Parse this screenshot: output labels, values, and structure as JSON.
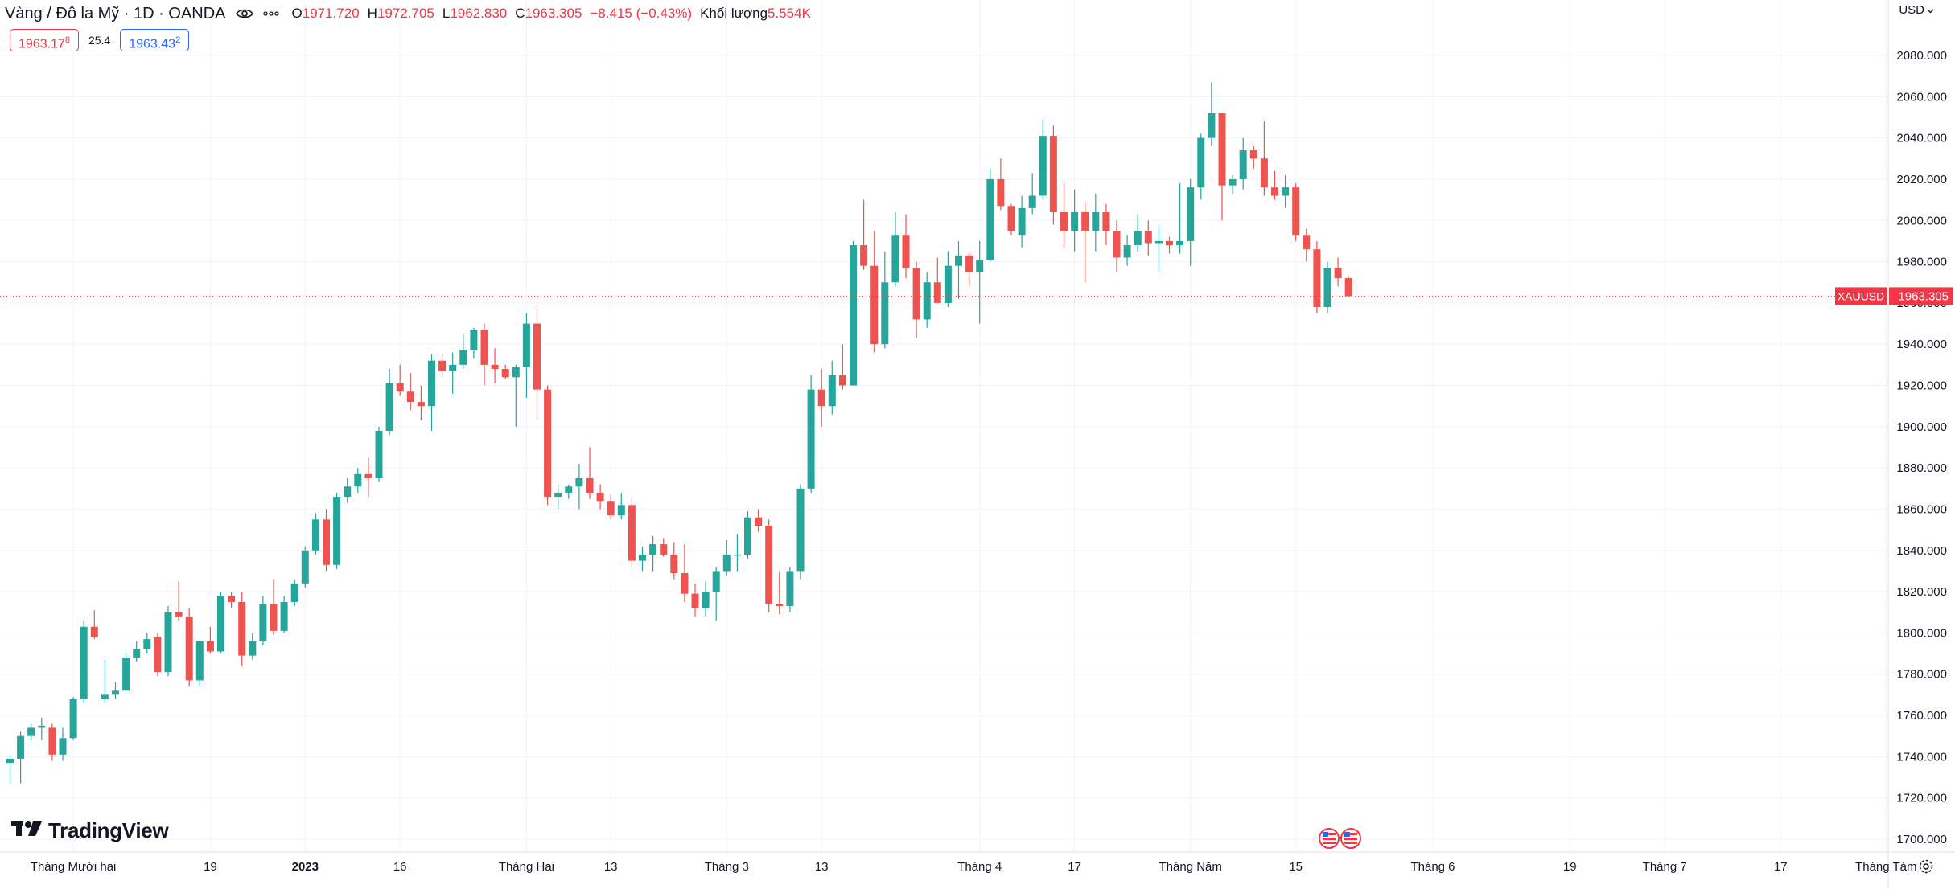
{
  "header": {
    "symbol_title": "Vàng / Đô la Mỹ · 1D · OANDA",
    "open_label": "O",
    "open_value": "1971.720",
    "high_label": "H",
    "high_value": "1972.705",
    "low_label": "L",
    "low_value": "1962.830",
    "close_label": "C",
    "close_value": "1963.305",
    "change_value": "−8.415 (−0.43%)",
    "volume_label": "Khối lượng",
    "volume_value": "5.554K",
    "sell_price": "1963.17",
    "sell_price_sup": "8",
    "spread": "25.4",
    "buy_price": "1963.43",
    "buy_price_sup": "2"
  },
  "currency": "USD",
  "logo_text": "TradingView",
  "last_price_tag": {
    "symbol": "XAUUSD",
    "price": "1963.305"
  },
  "colors": {
    "up": "#26a69a",
    "down": "#ef5350",
    "grid": "#f0f3fa",
    "axis_text": "#131722",
    "last_price": "#f23645"
  },
  "chart_data": {
    "type": "candlestick",
    "symbol": "XAUUSD",
    "interval": "1D",
    "ylim": [
      1690,
      2090
    ],
    "y_ticks": [
      "1700.000",
      "1720.000",
      "1740.000",
      "1760.000",
      "1780.000",
      "1800.000",
      "1820.000",
      "1840.000",
      "1860.000",
      "1880.000",
      "1900.000",
      "1920.000",
      "1940.000",
      "1960.000",
      "1980.000",
      "2000.000",
      "2020.000",
      "2040.000",
      "2060.000",
      "2080.000"
    ],
    "x_ticks": [
      {
        "index": 6,
        "label": "Tháng Mười hai",
        "bold": false
      },
      {
        "index": 19,
        "label": "19",
        "bold": false
      },
      {
        "index": 28,
        "label": "2023",
        "bold": true
      },
      {
        "index": 37,
        "label": "16",
        "bold": false
      },
      {
        "index": 49,
        "label": "Tháng Hai",
        "bold": false
      },
      {
        "index": 57,
        "label": "13",
        "bold": false
      },
      {
        "index": 68,
        "label": "Tháng 3",
        "bold": false
      },
      {
        "index": 77,
        "label": "13",
        "bold": false
      },
      {
        "index": 92,
        "label": "Tháng 4",
        "bold": false
      },
      {
        "index": 101,
        "label": "17",
        "bold": false
      },
      {
        "index": 112,
        "label": "Tháng Năm",
        "bold": false
      },
      {
        "index": 122,
        "label": "15",
        "bold": false
      },
      {
        "index": 135,
        "label": "Tháng 6",
        "bold": false
      },
      {
        "index": 148,
        "label": "19",
        "bold": false
      },
      {
        "index": 157,
        "label": "Tháng 7",
        "bold": false
      },
      {
        "index": 168,
        "label": "17",
        "bold": false
      },
      {
        "index": 178,
        "label": "Tháng Tám",
        "bold": false
      }
    ],
    "candles": [
      [
        1737.0,
        1740.0,
        1727.0,
        1739.0
      ],
      [
        1739.0,
        1752.0,
        1727.0,
        1750.0
      ],
      [
        1750.0,
        1756.0,
        1748.0,
        1754.0
      ],
      [
        1754.0,
        1759.0,
        1748.0,
        1755.0
      ],
      [
        1754.0,
        1756.0,
        1738.0,
        1741.0
      ],
      [
        1741.0,
        1754.0,
        1738.0,
        1749.0
      ],
      [
        1749.0,
        1769.0,
        1748.0,
        1768.0
      ],
      [
        1768.0,
        1806.0,
        1766.0,
        1803.0
      ],
      [
        1803.0,
        1811.0,
        1797.0,
        1798.0
      ],
      [
        1768.0,
        1787.0,
        1766.0,
        1770.0
      ],
      [
        1770.0,
        1776.0,
        1768.0,
        1772.0
      ],
      [
        1772.0,
        1790.0,
        1772.0,
        1788.0
      ],
      [
        1788.0,
        1796.0,
        1786.0,
        1792.0
      ],
      [
        1792.0,
        1800.0,
        1790.0,
        1797.0
      ],
      [
        1798.0,
        1800.0,
        1779.0,
        1781.0
      ],
      [
        1781.0,
        1813.0,
        1779.0,
        1810.0
      ],
      [
        1810.0,
        1825.0,
        1806.0,
        1808.0
      ],
      [
        1808.0,
        1812.0,
        1774.0,
        1777.0
      ],
      [
        1777.0,
        1792.0,
        1774.0,
        1796.0
      ],
      [
        1796.0,
        1803.0,
        1790.0,
        1791.0
      ],
      [
        1791.0,
        1820.0,
        1790.0,
        1818.0
      ],
      [
        1818.0,
        1820.0,
        1812.0,
        1815.0
      ],
      [
        1815.0,
        1820.0,
        1784.0,
        1789.0
      ],
      [
        1789.0,
        1800.0,
        1787.0,
        1796.0
      ],
      [
        1796.0,
        1818.0,
        1794.0,
        1814.0
      ],
      [
        1814.0,
        1826.0,
        1799.0,
        1801.0
      ],
      [
        1801.0,
        1818.0,
        1800.0,
        1815.0
      ],
      [
        1815.0,
        1826.0,
        1813.0,
        1824.0
      ],
      [
        1824.0,
        1842.0,
        1822.0,
        1840.0
      ],
      [
        1840.0,
        1858.0,
        1838.0,
        1855.0
      ],
      [
        1855.0,
        1860.0,
        1830.0,
        1833.0
      ],
      [
        1833.0,
        1868.0,
        1831.0,
        1866.0
      ],
      [
        1866.0,
        1875.0,
        1863.0,
        1871.0
      ],
      [
        1871.0,
        1880.0,
        1868.0,
        1877.0
      ],
      [
        1877.0,
        1885.0,
        1866.0,
        1875.0
      ],
      [
        1875.0,
        1900.0,
        1873.0,
        1898.0
      ],
      [
        1898.0,
        1928.0,
        1896.0,
        1921.0
      ],
      [
        1921.0,
        1930.0,
        1915.0,
        1917.0
      ],
      [
        1917.0,
        1926.0,
        1908.0,
        1912.0
      ],
      [
        1912.0,
        1920.0,
        1903.0,
        1910.0
      ],
      [
        1910.0,
        1935.0,
        1898.0,
        1932.0
      ],
      [
        1932.0,
        1935.0,
        1924.0,
        1927.0
      ],
      [
        1927.0,
        1936.0,
        1916.0,
        1930.0
      ],
      [
        1930.0,
        1945.0,
        1928.0,
        1937.0
      ],
      [
        1937.0,
        1948.0,
        1933.0,
        1947.0
      ],
      [
        1947.0,
        1950.0,
        1920.0,
        1930.0
      ],
      [
        1930.0,
        1938.0,
        1921.0,
        1928.0
      ],
      [
        1928.0,
        1930.0,
        1923.0,
        1924.0
      ],
      [
        1924.0,
        1930.0,
        1900.0,
        1929.0
      ],
      [
        1929.0,
        1955.0,
        1914.0,
        1950.0
      ],
      [
        1950.0,
        1959.0,
        1904.0,
        1918.0
      ],
      [
        1918.0,
        1920.0,
        1862.0,
        1866.0
      ],
      [
        1866.0,
        1872.0,
        1860.0,
        1868.0
      ],
      [
        1868.0,
        1872.0,
        1865.0,
        1871.0
      ],
      [
        1871.0,
        1882.0,
        1860.0,
        1875.0
      ],
      [
        1875.0,
        1890.0,
        1865.0,
        1868.0
      ],
      [
        1868.0,
        1872.0,
        1860.0,
        1864.0
      ],
      [
        1864.0,
        1867.0,
        1855.0,
        1857.0
      ],
      [
        1857.0,
        1868.0,
        1855.0,
        1862.0
      ],
      [
        1862.0,
        1865.0,
        1832.0,
        1835.0
      ],
      [
        1835.0,
        1842.0,
        1830.0,
        1838.0
      ],
      [
        1838.0,
        1847.0,
        1830.0,
        1843.0
      ],
      [
        1843.0,
        1846.0,
        1837.0,
        1838.0
      ],
      [
        1838.0,
        1844.0,
        1826.0,
        1829.0
      ],
      [
        1829.0,
        1843.0,
        1815.0,
        1819.0
      ],
      [
        1819.0,
        1824.0,
        1808.0,
        1812.0
      ],
      [
        1812.0,
        1825.0,
        1808.0,
        1820.0
      ],
      [
        1820.0,
        1832.0,
        1806.0,
        1830.0
      ],
      [
        1830.0,
        1845.0,
        1828.0,
        1838.0
      ],
      [
        1838.0,
        1848.0,
        1830.0,
        1838.0
      ],
      [
        1838.0,
        1859.0,
        1836.0,
        1856.0
      ],
      [
        1856.0,
        1860.0,
        1849.0,
        1852.0
      ],
      [
        1852.0,
        1855.0,
        1810.0,
        1814.0
      ],
      [
        1814.0,
        1830.0,
        1809.0,
        1813.0
      ],
      [
        1813.0,
        1832.0,
        1810.0,
        1830.0
      ],
      [
        1830.0,
        1872.0,
        1826.0,
        1870.0
      ],
      [
        1870.0,
        1925.0,
        1868.0,
        1918.0
      ],
      [
        1918.0,
        1928.0,
        1900.0,
        1910.0
      ],
      [
        1910.0,
        1932.0,
        1906.0,
        1925.0
      ],
      [
        1925.0,
        1940.0,
        1918.0,
        1920.0
      ],
      [
        1920.0,
        1990.0,
        1920.0,
        1988.0
      ],
      [
        1988.0,
        2010.0,
        1976.0,
        1978.0
      ],
      [
        1978.0,
        1995.0,
        1936.0,
        1940.0
      ],
      [
        1940.0,
        1985.0,
        1938.0,
        1970.0
      ],
      [
        1970.0,
        2004.0,
        1968.0,
        1993.0
      ],
      [
        1993.0,
        2003.0,
        1972.0,
        1977.0
      ],
      [
        1977.0,
        1980.0,
        1943.0,
        1952.0
      ],
      [
        1952.0,
        1975.0,
        1948.0,
        1970.0
      ],
      [
        1970.0,
        1982.0,
        1960.0,
        1960.0
      ],
      [
        1960.0,
        1985.0,
        1958.0,
        1978.0
      ],
      [
        1978.0,
        1990.0,
        1962.0,
        1983.0
      ],
      [
        1983.0,
        1985.0,
        1968.0,
        1975.0
      ],
      [
        1975.0,
        1990.0,
        1950.0,
        1981.0
      ],
      [
        1981.0,
        2025.0,
        1980.0,
        2020.0
      ],
      [
        2020.0,
        2030.0,
        2005.0,
        2007.0
      ],
      [
        2007.0,
        2008.0,
        1993.0,
        1995.0
      ],
      [
        1993.0,
        2012.0,
        1987.0,
        2006.0
      ],
      [
        2006.0,
        2023.0,
        2003.0,
        2012.0
      ],
      [
        2012.0,
        2049.0,
        2010.0,
        2041.0
      ],
      [
        2041.0,
        2046.0,
        1998.0,
        2004.0
      ],
      [
        2004.0,
        2018.0,
        1987.0,
        1995.0
      ],
      [
        1995.0,
        2015.0,
        1985.0,
        2004.0
      ],
      [
        2004.0,
        2009.0,
        1970.0,
        1995.0
      ],
      [
        1995.0,
        2013.0,
        1985.0,
        2004.0
      ],
      [
        2004.0,
        2008.0,
        1988.0,
        1995.0
      ],
      [
        1995.0,
        2000.0,
        1975.0,
        1982.0
      ],
      [
        1982.0,
        1993.0,
        1978.0,
        1988.0
      ],
      [
        1988.0,
        2003.0,
        1985.0,
        1995.0
      ],
      [
        1995.0,
        2000.0,
        1983.0,
        1989.0
      ],
      [
        1989.0,
        1998.0,
        1975.0,
        1990.0
      ],
      [
        1990.0,
        1992.0,
        1984.0,
        1988.0
      ],
      [
        1988.0,
        2018.0,
        1984.0,
        1990.0
      ],
      [
        1990.0,
        2020.0,
        1978.0,
        2016.0
      ],
      [
        2016.0,
        2042.0,
        2010.0,
        2040.0
      ],
      [
        2040.0,
        2067.0,
        2036.0,
        2052.0
      ],
      [
        2052.0,
        2050.0,
        2000.0,
        2017.0
      ],
      [
        2017.0,
        2022.0,
        2013.0,
        2020.0
      ],
      [
        2020.0,
        2040.0,
        2015.0,
        2034.0
      ],
      [
        2034.0,
        2036.0,
        2025.0,
        2030.0
      ],
      [
        2030.0,
        2048.0,
        2012.0,
        2016.0
      ],
      [
        2016.0,
        2024.0,
        2010.0,
        2012.0
      ],
      [
        2012.0,
        2022.0,
        2006.0,
        2016.0
      ],
      [
        2016.0,
        2018.0,
        1990.0,
        1993.0
      ],
      [
        1993.0,
        1996.0,
        1980.0,
        1986.0
      ],
      [
        1986.0,
        1990.0,
        1955.0,
        1958.0
      ],
      [
        1958.0,
        1980.0,
        1955.0,
        1977.0
      ],
      [
        1977.0,
        1982.0,
        1968.0,
        1972.0
      ],
      [
        1972.0,
        1973.0,
        1963.0,
        1963.305
      ]
    ]
  }
}
